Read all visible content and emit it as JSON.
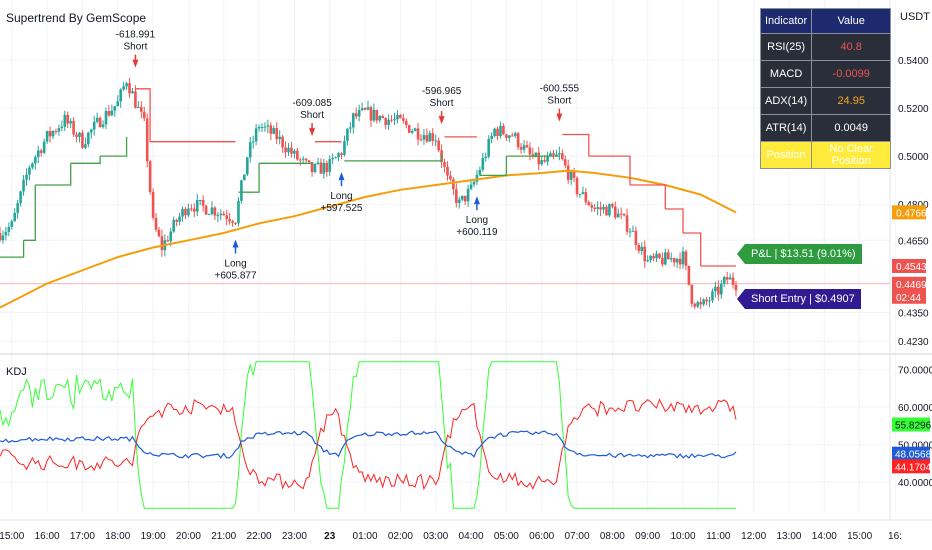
{
  "chart_title": "Supertrend By GemScope",
  "currency": "USDT",
  "kdj_title": "KDJ",
  "colors": {
    "bull": "#26a69a",
    "bear": "#ef5350",
    "supertrend_up": "#43a047",
    "supertrend_down": "#ef5350",
    "ema": "#f59e0b",
    "k": "#1e5bd8",
    "d": "#ff2222",
    "j": "#34ff34"
  },
  "indicator_table": {
    "header": [
      "Indicator",
      "Value"
    ],
    "rows": [
      {
        "label": "RSI(25)",
        "value": "40.8",
        "color": "#ef5350"
      },
      {
        "label": "MACD",
        "value": "-0.0099",
        "color": "#ef5350"
      },
      {
        "label": "ADX(14)",
        "value": "24.95",
        "color": "#f5a623"
      },
      {
        "label": "ATR(14)",
        "value": "0.0049",
        "color": "#ffffff"
      }
    ],
    "position_label": "Position",
    "position_value": "No Clear Position"
  },
  "tags": {
    "pnl": "P&L | $13.51 (9.01%)",
    "short_entry": "Short Entry | $0.4907"
  },
  "price_axis": {
    "ticks": [
      "0.5400",
      "0.5200",
      "0.5000",
      "0.4800",
      "0.4650",
      "0.4350",
      "0.4230"
    ],
    "badges": [
      {
        "label": "0.4766",
        "color": "#f59e0b"
      },
      {
        "label": "0.4543",
        "color": "#ef5350"
      },
      {
        "label": "0.4469",
        "color": "#ef5350"
      },
      {
        "label": "02:44",
        "color": "#ef5350"
      }
    ]
  },
  "kdj_axis": {
    "ticks": [
      "70.0000",
      "60.0000",
      "50.0000",
      "40.0000"
    ],
    "badges": [
      {
        "label": "55.8296",
        "color": "#34ff34",
        "text": "#131722"
      },
      {
        "label": "48.0568",
        "color": "#1e5bd8",
        "text": "#ffffff"
      },
      {
        "label": "44.1704",
        "color": "#ff2222",
        "text": "#ffffff"
      }
    ]
  },
  "time_axis": [
    "15:00",
    "16:00",
    "17:00",
    "18:00",
    "19:00",
    "20:00",
    "21:00",
    "22:00",
    "23:00",
    "23",
    "01:00",
    "02:00",
    "03:00",
    "04:00",
    "05:00",
    "06:00",
    "07:00",
    "08:00",
    "09:00",
    "10:00",
    "11:00",
    "12:00",
    "13:00",
    "14:00",
    "15:00",
    "16:"
  ],
  "signals": [
    {
      "type": "Short",
      "value": "-618.991",
      "time": "18:30"
    },
    {
      "type": "Long",
      "value": "+605.877",
      "time": "21:20"
    },
    {
      "type": "Short",
      "value": "-609.085",
      "time": "23:30"
    },
    {
      "type": "Long",
      "value": "+597.525",
      "time": "00:20"
    },
    {
      "type": "Short",
      "value": "-596.965",
      "time": "03:10"
    },
    {
      "type": "Long",
      "value": "+600.119",
      "time": "04:10"
    },
    {
      "type": "Short",
      "value": "-600.555",
      "time": "06:30"
    }
  ],
  "chart_data": {
    "type": "candlestick",
    "time_range": [
      "14:40",
      "11:30"
    ],
    "price_range": [
      0.421,
      0.546
    ],
    "kdj_range": [
      32,
      73
    ],
    "close_anchors": [
      {
        "t": "14:40",
        "p": 0.468
      },
      {
        "t": "15:00",
        "p": 0.471
      },
      {
        "t": "15:30",
        "p": 0.496
      },
      {
        "t": "16:00",
        "p": 0.508
      },
      {
        "t": "16:30",
        "p": 0.515
      },
      {
        "t": "17:00",
        "p": 0.506
      },
      {
        "t": "17:30",
        "p": 0.515
      },
      {
        "t": "18:00",
        "p": 0.522
      },
      {
        "t": "18:15",
        "p": 0.532
      },
      {
        "t": "18:45",
        "p": 0.513
      },
      {
        "t": "19:00",
        "p": 0.472
      },
      {
        "t": "19:15",
        "p": 0.462
      },
      {
        "t": "19:40",
        "p": 0.473
      },
      {
        "t": "20:00",
        "p": 0.48
      },
      {
        "t": "20:40",
        "p": 0.478
      },
      {
        "t": "21:20",
        "p": 0.474
      },
      {
        "t": "21:40",
        "p": 0.5
      },
      {
        "t": "22:00",
        "p": 0.513
      },
      {
        "t": "22:30",
        "p": 0.508
      },
      {
        "t": "23:00",
        "p": 0.5
      },
      {
        "t": "23:30",
        "p": 0.494
      },
      {
        "t": "00:00",
        "p": 0.496
      },
      {
        "t": "00:20",
        "p": 0.502
      },
      {
        "t": "00:40",
        "p": 0.516
      },
      {
        "t": "01:00",
        "p": 0.518
      },
      {
        "t": "02:00",
        "p": 0.514
      },
      {
        "t": "02:30",
        "p": 0.51
      },
      {
        "t": "03:00",
        "p": 0.508
      },
      {
        "t": "03:20",
        "p": 0.49
      },
      {
        "t": "03:40",
        "p": 0.48
      },
      {
        "t": "04:00",
        "p": 0.486
      },
      {
        "t": "04:20",
        "p": 0.498
      },
      {
        "t": "04:40",
        "p": 0.511
      },
      {
        "t": "05:10",
        "p": 0.509
      },
      {
        "t": "05:40",
        "p": 0.5
      },
      {
        "t": "06:00",
        "p": 0.497
      },
      {
        "t": "06:30",
        "p": 0.5
      },
      {
        "t": "07:00",
        "p": 0.486
      },
      {
        "t": "07:30",
        "p": 0.478
      },
      {
        "t": "08:00",
        "p": 0.478
      },
      {
        "t": "08:30",
        "p": 0.47
      },
      {
        "t": "09:00",
        "p": 0.456
      },
      {
        "t": "09:30",
        "p": 0.457
      },
      {
        "t": "10:00",
        "p": 0.458
      },
      {
        "t": "10:15",
        "p": 0.441
      },
      {
        "t": "10:30",
        "p": 0.437
      },
      {
        "t": "11:00",
        "p": 0.444
      },
      {
        "t": "11:15",
        "p": 0.449
      },
      {
        "t": "11:30",
        "p": 0.447
      }
    ],
    "ema": [
      {
        "t": "14:40",
        "p": 0.437
      },
      {
        "t": "16:00",
        "p": 0.447
      },
      {
        "t": "18:00",
        "p": 0.458
      },
      {
        "t": "19:00",
        "p": 0.462
      },
      {
        "t": "20:00",
        "p": 0.465
      },
      {
        "t": "21:00",
        "p": 0.468
      },
      {
        "t": "22:00",
        "p": 0.472
      },
      {
        "t": "23:00",
        "p": 0.475
      },
      {
        "t": "00:00",
        "p": 0.479
      },
      {
        "t": "01:00",
        "p": 0.483
      },
      {
        "t": "02:00",
        "p": 0.486
      },
      {
        "t": "03:00",
        "p": 0.488
      },
      {
        "t": "04:00",
        "p": 0.49
      },
      {
        "t": "05:00",
        "p": 0.492
      },
      {
        "t": "06:00",
        "p": 0.493
      },
      {
        "t": "06:45",
        "p": 0.494
      },
      {
        "t": "07:30",
        "p": 0.493
      },
      {
        "t": "08:30",
        "p": 0.491
      },
      {
        "t": "09:30",
        "p": 0.488
      },
      {
        "t": "10:30",
        "p": 0.484
      },
      {
        "t": "11:30",
        "p": 0.4766
      }
    ],
    "supertrend": [
      {
        "t": "14:40",
        "p": 0.458,
        "dir": "up"
      },
      {
        "t": "15:20",
        "p": 0.465,
        "dir": "up"
      },
      {
        "t": "15:40",
        "p": 0.488,
        "dir": "up"
      },
      {
        "t": "16:40",
        "p": 0.497,
        "dir": "up"
      },
      {
        "t": "17:30",
        "p": 0.5,
        "dir": "up"
      },
      {
        "t": "18:15",
        "p": 0.508,
        "dir": "up"
      },
      {
        "t": "18:30",
        "p": 0.528,
        "dir": "down"
      },
      {
        "t": "18:55",
        "p": 0.506,
        "dir": "down"
      },
      {
        "t": "21:20",
        "p": 0.506,
        "dir": "down"
      },
      {
        "t": "21:25",
        "p": 0.485,
        "dir": "up"
      },
      {
        "t": "22:00",
        "p": 0.497,
        "dir": "up"
      },
      {
        "t": "23:30",
        "p": 0.497,
        "dir": "up"
      },
      {
        "t": "23:35",
        "p": 0.506,
        "dir": "down"
      },
      {
        "t": "00:20",
        "p": 0.506,
        "dir": "down"
      },
      {
        "t": "00:25",
        "p": 0.498,
        "dir": "up"
      },
      {
        "t": "03:10",
        "p": 0.501,
        "dir": "up"
      },
      {
        "t": "03:15",
        "p": 0.508,
        "dir": "down"
      },
      {
        "t": "04:10",
        "p": 0.508,
        "dir": "down"
      },
      {
        "t": "04:15",
        "p": 0.492,
        "dir": "up"
      },
      {
        "t": "05:00",
        "p": 0.5,
        "dir": "up"
      },
      {
        "t": "06:30",
        "p": 0.5,
        "dir": "up"
      },
      {
        "t": "06:35",
        "p": 0.509,
        "dir": "down"
      },
      {
        "t": "07:20",
        "p": 0.5,
        "dir": "down"
      },
      {
        "t": "08:30",
        "p": 0.488,
        "dir": "down"
      },
      {
        "t": "09:30",
        "p": 0.478,
        "dir": "down"
      },
      {
        "t": "10:00",
        "p": 0.468,
        "dir": "down"
      },
      {
        "t": "10:30",
        "p": 0.4543,
        "dir": "down"
      },
      {
        "t": "11:30",
        "p": 0.4543,
        "dir": "down"
      }
    ],
    "kdj_latest": {
      "K": 48.0568,
      "D": 44.1704,
      "J": 55.8296
    }
  }
}
